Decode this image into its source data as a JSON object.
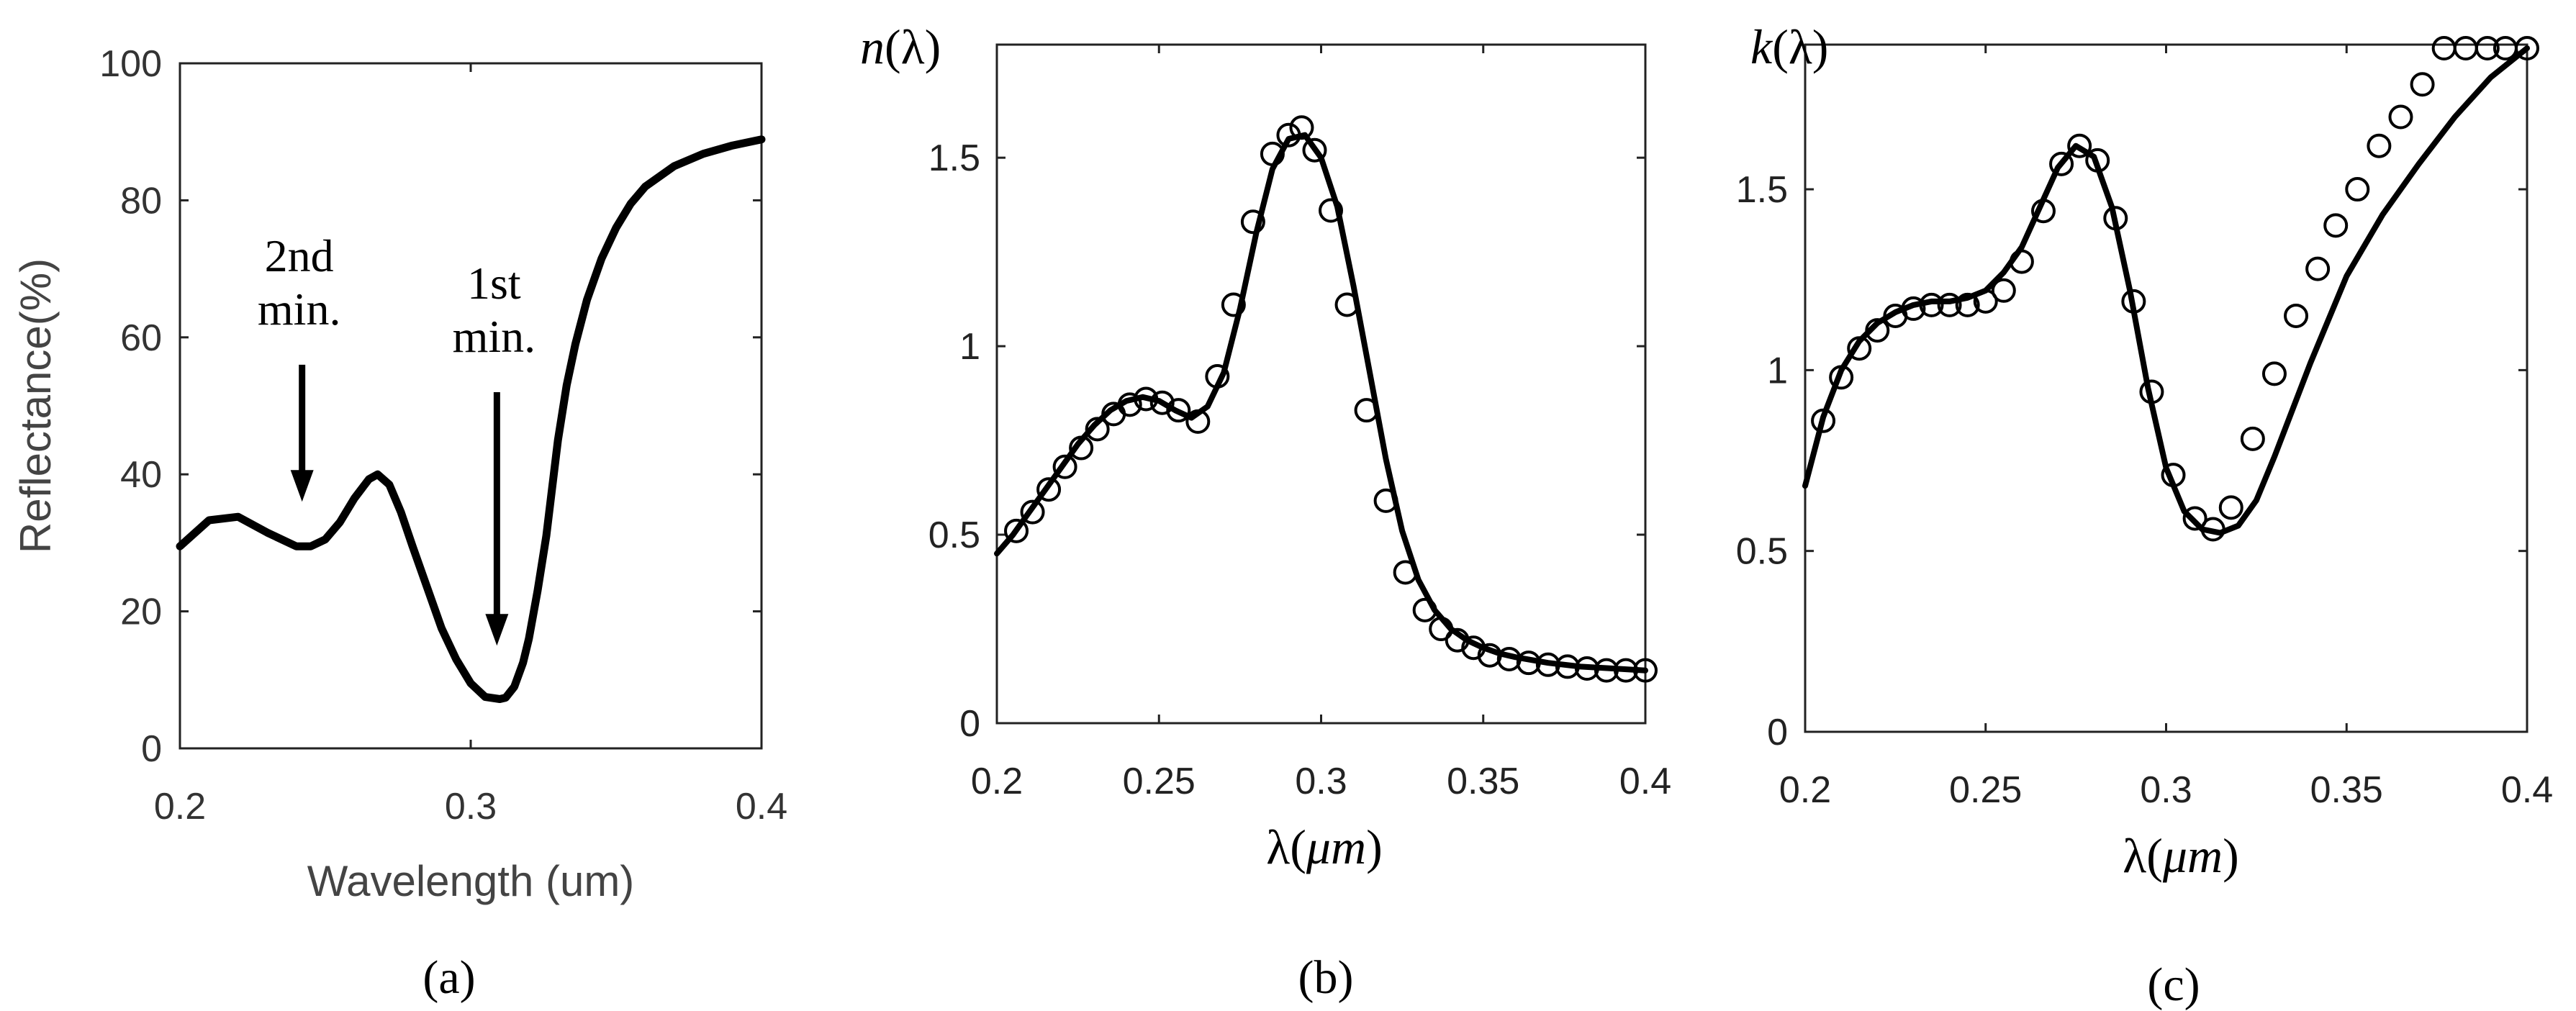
{
  "chart_data": [
    {
      "id": "a",
      "type": "line",
      "panel_label": "(a)",
      "xlabel": "Wavelength (um)",
      "ylabel": "Reflectance(%)",
      "xlim": [
        0.2,
        0.4
      ],
      "ylim": [
        0,
        100
      ],
      "xticks": [
        "0.2",
        "0.3",
        "0.4"
      ],
      "xtick_values": [
        0.2,
        0.3,
        0.4
      ],
      "yticks": [
        "0",
        "20",
        "40",
        "60",
        "80",
        "100"
      ],
      "ytick_values": [
        0,
        20,
        40,
        60,
        80,
        100
      ],
      "series": [
        {
          "name": "Reflectance",
          "x": [
            0.2,
            0.21,
            0.22,
            0.23,
            0.24,
            0.245,
            0.25,
            0.255,
            0.26,
            0.265,
            0.268,
            0.272,
            0.276,
            0.28,
            0.285,
            0.29,
            0.295,
            0.3,
            0.305,
            0.31,
            0.312,
            0.315,
            0.318,
            0.32,
            0.323,
            0.326,
            0.328,
            0.33,
            0.333,
            0.336,
            0.34,
            0.345,
            0.35,
            0.355,
            0.36,
            0.37,
            0.38,
            0.39,
            0.4
          ],
          "y": [
            29.5,
            33.3,
            33.8,
            31.5,
            29.5,
            29.5,
            30.5,
            33.0,
            36.5,
            39.3,
            40.0,
            38.5,
            34.5,
            29.5,
            23.5,
            17.5,
            13.0,
            9.5,
            7.5,
            7.2,
            7.4,
            9.0,
            12.5,
            16.0,
            23.0,
            31.0,
            38.0,
            45.0,
            53.0,
            59.0,
            65.5,
            71.5,
            76.0,
            79.5,
            82.0,
            85.0,
            86.8,
            88.0,
            88.9
          ]
        }
      ],
      "annotations": [
        {
          "lines": [
            "2nd",
            "min."
          ],
          "x": 0.242,
          "arrow_from": 56,
          "arrow_to": 36
        },
        {
          "lines": [
            "1st",
            "min."
          ],
          "x": 0.309,
          "arrow_from": 52,
          "arrow_to": 15
        }
      ]
    },
    {
      "id": "b",
      "type": "line",
      "panel_label": "(b)",
      "ylabel_pre": "n",
      "ylabel_post": "(λ)",
      "xlabel_pre": "λ(",
      "xlabel_unit": "μm",
      "xlabel_post": ")",
      "xlim": [
        0.2,
        0.4
      ],
      "ylim": [
        0,
        1.8
      ],
      "xticks": [
        "0.2",
        "0.25",
        "0.3",
        "0.35",
        "0.4"
      ],
      "xtick_values": [
        0.2,
        0.25,
        0.3,
        0.35,
        0.4
      ],
      "yticks": [
        "0",
        "0.5",
        "1",
        "1.5"
      ],
      "ytick_values": [
        0,
        0.5,
        1.0,
        1.5
      ],
      "series": [
        {
          "name": "fit",
          "x": [
            0.2,
            0.205,
            0.21,
            0.215,
            0.22,
            0.225,
            0.23,
            0.235,
            0.24,
            0.245,
            0.25,
            0.255,
            0.26,
            0.265,
            0.27,
            0.275,
            0.28,
            0.285,
            0.29,
            0.295,
            0.3,
            0.305,
            0.31,
            0.315,
            0.32,
            0.325,
            0.33,
            0.335,
            0.34,
            0.345,
            0.35,
            0.355,
            0.36,
            0.37,
            0.38,
            0.39,
            0.4
          ],
          "y": [
            0.45,
            0.5,
            0.56,
            0.62,
            0.68,
            0.74,
            0.79,
            0.83,
            0.855,
            0.865,
            0.855,
            0.83,
            0.81,
            0.84,
            0.93,
            1.1,
            1.3,
            1.47,
            1.55,
            1.56,
            1.5,
            1.37,
            1.16,
            0.93,
            0.7,
            0.51,
            0.38,
            0.3,
            0.25,
            0.22,
            0.2,
            0.185,
            0.175,
            0.16,
            0.15,
            0.145,
            0.14
          ]
        },
        {
          "name": "data",
          "marker": "circle",
          "x": [
            0.206,
            0.211,
            0.216,
            0.221,
            0.226,
            0.231,
            0.236,
            0.241,
            0.246,
            0.251,
            0.256,
            0.262,
            0.268,
            0.273,
            0.279,
            0.285,
            0.29,
            0.294,
            0.298,
            0.303,
            0.308,
            0.314,
            0.32,
            0.326,
            0.332,
            0.337,
            0.342,
            0.347,
            0.352,
            0.358,
            0.364,
            0.37,
            0.376,
            0.382,
            0.388,
            0.394,
            0.4
          ],
          "y": [
            0.51,
            0.56,
            0.62,
            0.68,
            0.73,
            0.78,
            0.82,
            0.845,
            0.86,
            0.85,
            0.83,
            0.8,
            0.92,
            1.11,
            1.33,
            1.51,
            1.56,
            1.58,
            1.52,
            1.36,
            1.11,
            0.83,
            0.59,
            0.4,
            0.3,
            0.25,
            0.22,
            0.2,
            0.18,
            0.17,
            0.16,
            0.155,
            0.15,
            0.145,
            0.14,
            0.14,
            0.14
          ]
        }
      ]
    },
    {
      "id": "c",
      "type": "line",
      "panel_label": "(c)",
      "ylabel_pre": "k",
      "ylabel_post": "(λ)",
      "xlabel_pre": "λ(",
      "xlabel_unit": "μm",
      "xlabel_post": ")",
      "xlim": [
        0.2,
        0.4
      ],
      "ylim": [
        0,
        1.9
      ],
      "xticks": [
        "0.2",
        "0.25",
        "0.3",
        "0.35",
        "0.4"
      ],
      "xtick_values": [
        0.2,
        0.25,
        0.3,
        0.35,
        0.4
      ],
      "yticks": [
        "0",
        "0.5",
        "1",
        "1.5"
      ],
      "ytick_values": [
        0,
        0.5,
        1.0,
        1.5
      ],
      "series": [
        {
          "name": "fit",
          "x": [
            0.2,
            0.205,
            0.21,
            0.215,
            0.22,
            0.225,
            0.23,
            0.235,
            0.24,
            0.245,
            0.25,
            0.255,
            0.26,
            0.265,
            0.27,
            0.275,
            0.28,
            0.285,
            0.29,
            0.295,
            0.3,
            0.305,
            0.31,
            0.315,
            0.32,
            0.325,
            0.33,
            0.34,
            0.35,
            0.36,
            0.37,
            0.38,
            0.39,
            0.4
          ],
          "y": [
            0.68,
            0.87,
            1.0,
            1.08,
            1.13,
            1.16,
            1.18,
            1.19,
            1.19,
            1.2,
            1.22,
            1.27,
            1.34,
            1.45,
            1.56,
            1.62,
            1.59,
            1.45,
            1.22,
            0.95,
            0.73,
            0.61,
            0.56,
            0.55,
            0.57,
            0.64,
            0.76,
            1.02,
            1.26,
            1.43,
            1.57,
            1.7,
            1.81,
            1.89
          ]
        },
        {
          "name": "data",
          "marker": "circle",
          "x": [
            0.205,
            0.21,
            0.215,
            0.22,
            0.225,
            0.23,
            0.235,
            0.24,
            0.245,
            0.25,
            0.255,
            0.26,
            0.266,
            0.271,
            0.276,
            0.281,
            0.286,
            0.291,
            0.296,
            0.302,
            0.308,
            0.313,
            0.318,
            0.324,
            0.33,
            0.336,
            0.342,
            0.347,
            0.353,
            0.359,
            0.365,
            0.371,
            0.377,
            0.383,
            0.389,
            0.394,
            0.4
          ],
          "y": [
            0.86,
            0.98,
            1.06,
            1.11,
            1.15,
            1.17,
            1.18,
            1.18,
            1.18,
            1.19,
            1.22,
            1.3,
            1.44,
            1.57,
            1.62,
            1.58,
            1.42,
            1.19,
            0.94,
            0.71,
            0.59,
            0.56,
            0.62,
            0.81,
            0.99,
            1.15,
            1.28,
            1.4,
            1.5,
            1.62,
            1.7,
            1.79,
            1.89,
            1.89,
            1.89,
            1.89,
            1.89
          ]
        }
      ]
    }
  ]
}
